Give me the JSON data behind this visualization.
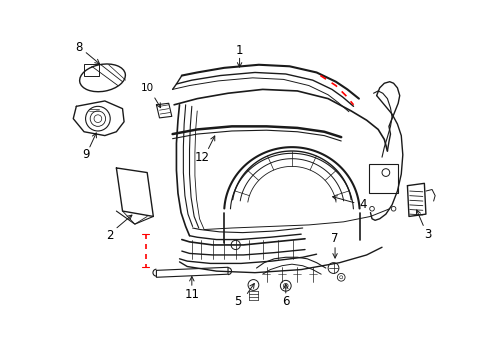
{
  "background_color": "#ffffff",
  "line_color": "#1a1a1a",
  "label_color": "#000000",
  "red_dash_color": "#ff0000",
  "figsize": [
    4.9,
    3.6
  ],
  "dpi": 100
}
